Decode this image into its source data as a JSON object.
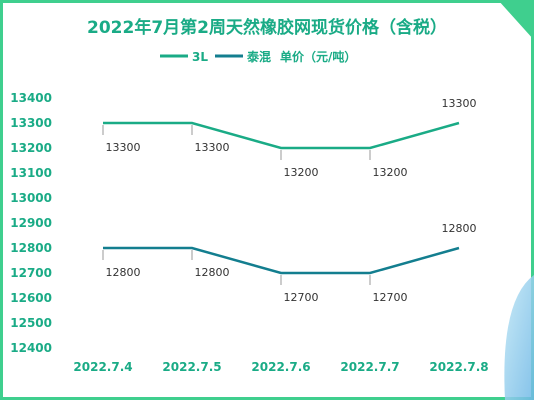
{
  "chart_data": {
    "type": "line",
    "title": "2022年7月第2周天然橡胶网现货价格（含税）",
    "categories": [
      "2022.7.4",
      "2022.7.5",
      "2022.7.6",
      "2022.7.7",
      "2022.7.8"
    ],
    "series": [
      {
        "name": "3L",
        "values": [
          13300,
          13300,
          13200,
          13200,
          13300
        ],
        "color": "#1aab86"
      },
      {
        "name": "泰混",
        "values": [
          12800,
          12800,
          12700,
          12700,
          12800
        ],
        "color": "#137e8f"
      }
    ],
    "legend_suffix": "单价（元/吨）",
    "ylim": [
      12400,
      13400
    ],
    "yticks": [
      12400,
      12500,
      12600,
      12700,
      12800,
      12900,
      13000,
      13100,
      13200,
      13300,
      13400
    ],
    "legend_position": "top",
    "grid": false,
    "colors": {
      "accent": "#1aab86",
      "text": "#1aab86",
      "border": "#3fcf8e"
    }
  }
}
